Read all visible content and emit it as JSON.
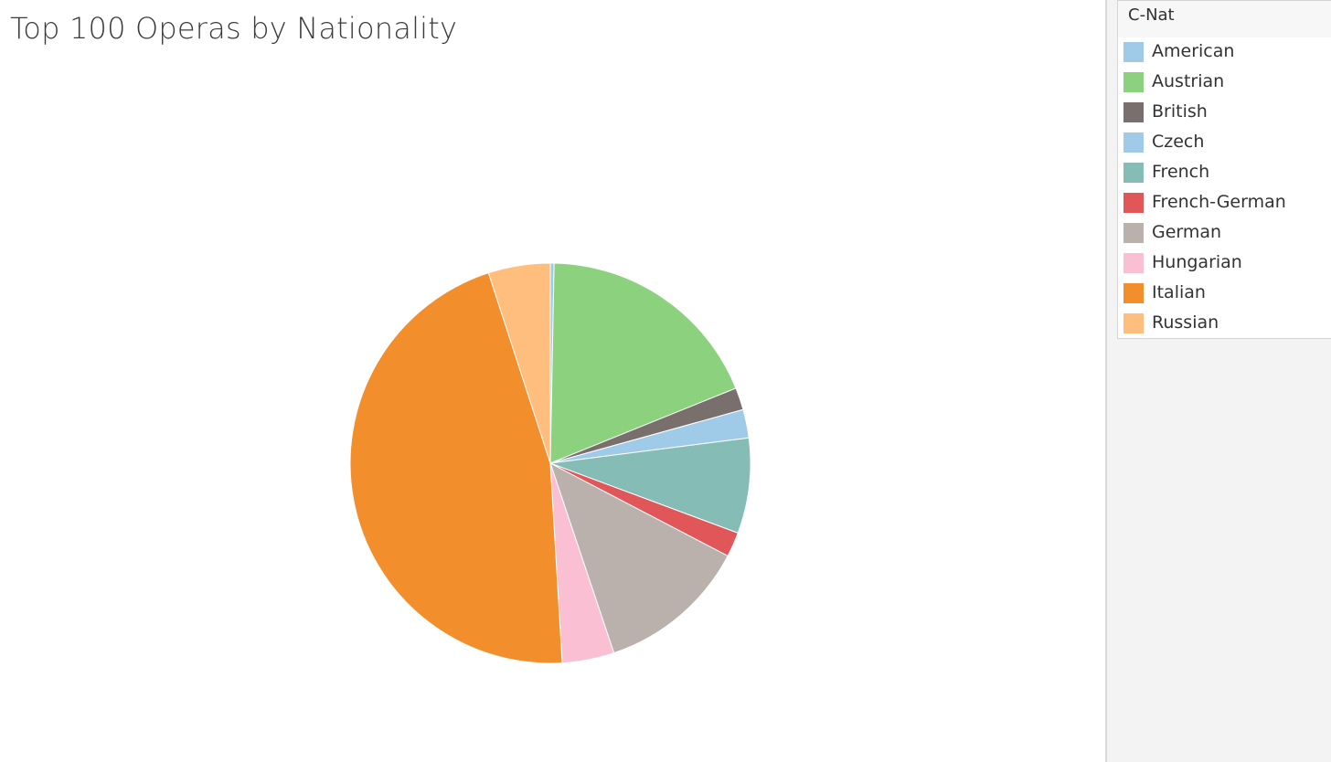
{
  "chart_data": {
    "type": "pie",
    "title": "Top 100 Operas by Nationality",
    "legend_title": "C-Nat",
    "legend_position": "right",
    "categories": [
      "American",
      "Austrian",
      "British",
      "Czech",
      "French",
      "French-German",
      "German",
      "Hungarian",
      "Italian",
      "Russian"
    ],
    "values": [
      0.3,
      18.6,
      1.8,
      2.3,
      7.7,
      2.0,
      12.2,
      4.2,
      46.0,
      5.0
    ],
    "colors": [
      "#a0cbe8",
      "#8cd17d",
      "#79706e",
      "#a0cbe8",
      "#86bcb6",
      "#e15759",
      "#bab0ac",
      "#fabfd2",
      "#f28e2b",
      "#ffbe7d"
    ],
    "slice_order": [
      "American",
      "Austrian",
      "British",
      "Czech",
      "French",
      "French-German",
      "German",
      "Hungarian",
      "Italian",
      "Russian"
    ]
  }
}
